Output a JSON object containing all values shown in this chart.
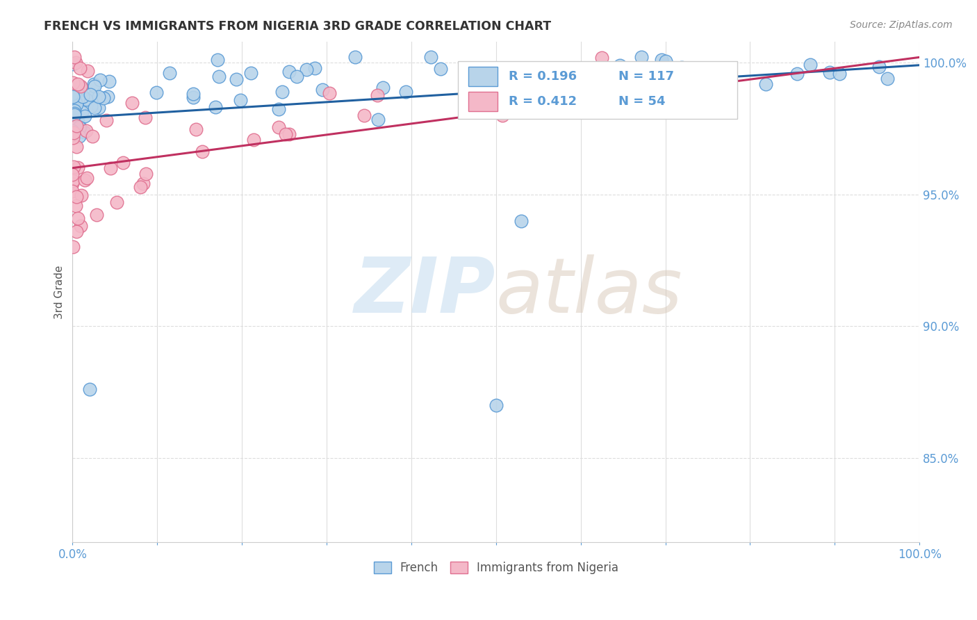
{
  "title": "FRENCH VS IMMIGRANTS FROM NIGERIA 3RD GRADE CORRELATION CHART",
  "source_text": "Source: ZipAtlas.com",
  "ylabel": "3rd Grade",
  "xlim": [
    0.0,
    1.0
  ],
  "ylim": [
    0.818,
    1.008
  ],
  "y_tick_values": [
    0.85,
    0.9,
    0.95,
    1.0
  ],
  "watermark_text": "ZIPatlas",
  "legend_blue_label": "French",
  "legend_pink_label": "Immigrants from Nigeria",
  "blue_R": 0.196,
  "blue_N": 117,
  "pink_R": 0.412,
  "pink_N": 54,
  "blue_face": "#b8d4ea",
  "blue_edge": "#5b9bd5",
  "pink_face": "#f4b8c8",
  "pink_edge": "#e07090",
  "blue_line_color": "#2060a0",
  "pink_line_color": "#c03060",
  "title_color": "#333333",
  "source_color": "#888888",
  "axis_tick_color": "#5b9bd5",
  "ylabel_color": "#555555",
  "grid_color": "#dddddd",
  "legend_text_color": "#5b9bd5",
  "blue_line_start_y": 0.979,
  "blue_line_end_y": 0.999,
  "pink_line_start_y": 0.96,
  "pink_line_end_y": 1.002
}
